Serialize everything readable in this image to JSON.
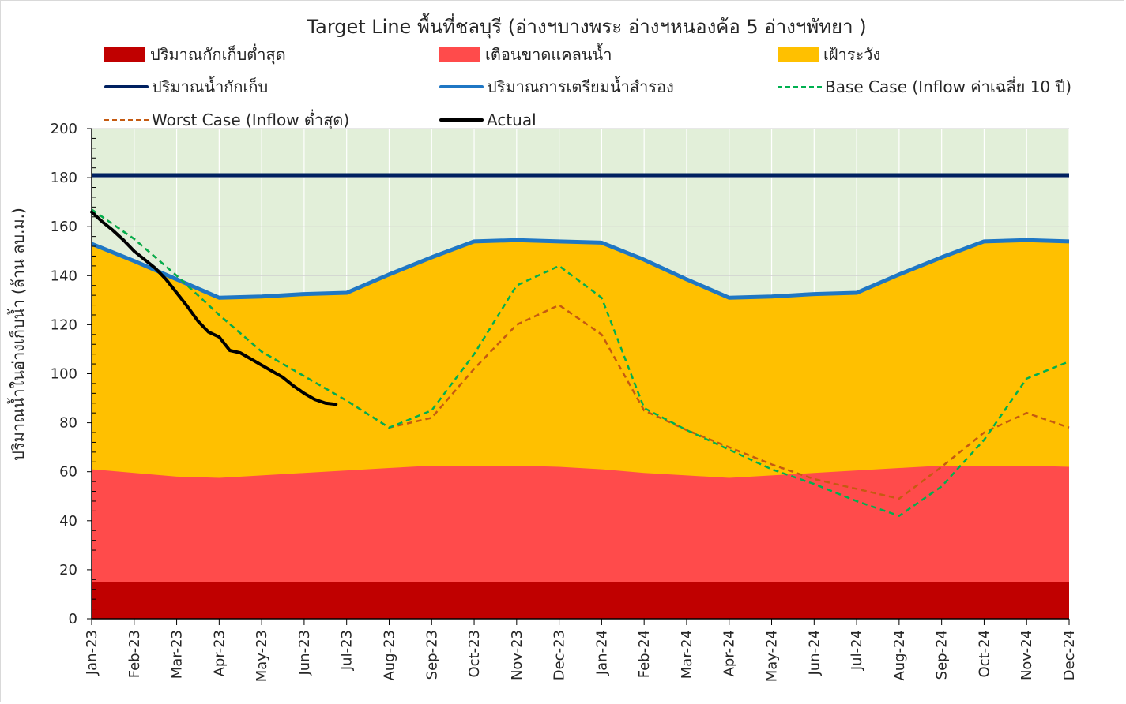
{
  "chart_data": {
    "type": "area",
    "title": "Target Line พื้นที่ชลบุรี (อ่างฯบางพระ อ่างฯหนองค้อ 5 อ่างฯพัทยา )",
    "ylabel": "ปริมาณน้ำในอ่างเก็บน้ำ (ล้าน ลบ.ม.)",
    "xlabel": "",
    "ylim": [
      0,
      200
    ],
    "yticks": [
      0,
      20,
      40,
      60,
      80,
      100,
      120,
      140,
      160,
      180,
      200
    ],
    "categories": [
      "Jan-23",
      "Feb-23",
      "Mar-23",
      "Apr-23",
      "May-23",
      "Jun-23",
      "Jul-23",
      "Aug-23",
      "Sep-23",
      "Oct-23",
      "Nov-23",
      "Dec-23",
      "Jan-24",
      "Feb-24",
      "Mar-24",
      "Apr-24",
      "May-24",
      "Jun-24",
      "Jul-24",
      "Aug-24",
      "Sep-24",
      "Oct-24",
      "Nov-24",
      "Dec-24"
    ],
    "grid": true,
    "legend_position": "top",
    "series": [
      {
        "name": "ปริมาณกักเก็บต่ำสุด",
        "kind": "area",
        "color": "#c00000",
        "values": [
          15,
          15,
          15,
          15,
          15,
          15,
          15,
          15,
          15,
          15,
          15,
          15,
          15,
          15,
          15,
          15,
          15,
          15,
          15,
          15,
          15,
          15,
          15,
          15
        ]
      },
      {
        "name": "เตือนขาดแคลนน้ำ",
        "kind": "area",
        "color": "#ff4b4b",
        "values": [
          61,
          59.5,
          58,
          57.5,
          58.5,
          59.5,
          60.5,
          61.5,
          62.5,
          62.5,
          62.5,
          62,
          61,
          59.5,
          58.5,
          57.5,
          58.5,
          59.5,
          60.5,
          61.5,
          62.5,
          62.5,
          62.5,
          62
        ]
      },
      {
        "name": "เฝ้าระวัง",
        "kind": "area",
        "color": "#ffc000",
        "values": [
          153,
          146,
          138.5,
          131,
          131.5,
          132.5,
          133,
          140.5,
          147.5,
          154,
          154.5,
          154,
          153.5,
          146.5,
          138.5,
          131,
          131.5,
          132.5,
          133,
          140.5,
          147.5,
          154,
          154.5,
          154
        ]
      },
      {
        "name": "ปริมาณน้ำกักเก็บ",
        "kind": "line",
        "color": "#002060",
        "values": [
          181,
          181,
          181,
          181,
          181,
          181,
          181,
          181,
          181,
          181,
          181,
          181,
          181,
          181,
          181,
          181,
          181,
          181,
          181,
          181,
          181,
          181,
          181,
          181
        ]
      },
      {
        "name": "ปริมาณการเตรียมน้ำสำรอง",
        "kind": "line",
        "color": "#1f77c4",
        "values": [
          153,
          146,
          138.5,
          131,
          131.5,
          132.5,
          133,
          140.5,
          147.5,
          154,
          154.5,
          154,
          153.5,
          146.5,
          138.5,
          131,
          131.5,
          132.5,
          133,
          140.5,
          147.5,
          154,
          154.5,
          154
        ]
      },
      {
        "name": "Base Case (Inflow ค่าเฉลี่ย 10 ปี)",
        "kind": "dashed",
        "color": "#00b050",
        "x": [
          "Jan-23",
          "Feb-23",
          "Mar-23",
          "Apr-23",
          "May-23",
          "Jun-23",
          "Jul-23",
          "Aug-23",
          "Sep-23",
          "Oct-23",
          "Nov-23",
          "Dec-23",
          "Jan-24",
          "Feb-24",
          "Mar-24",
          "Apr-24",
          "May-24",
          "Jun-24",
          "Jul-24",
          "Aug-24",
          "Sep-24",
          "Oct-24",
          "Nov-24",
          "Dec-24"
        ],
        "values": [
          167,
          155,
          140,
          124,
          109,
          99,
          89,
          78,
          85,
          108,
          136,
          144,
          131,
          86,
          77,
          69,
          61,
          55,
          48,
          42,
          54,
          73,
          98,
          105
        ]
      },
      {
        "name": "Worst Case (Inflow ต่ำสุด)",
        "kind": "dashed",
        "color": "#c55a11",
        "values": [
          167,
          155,
          140,
          124,
          109,
          99,
          89,
          78,
          82,
          102,
          120,
          128,
          116,
          85,
          77,
          70,
          63,
          57,
          53,
          49,
          62,
          76,
          84,
          78
        ]
      },
      {
        "name": "Actual",
        "kind": "line",
        "color": "#000000",
        "x": [
          0,
          0.25,
          0.5,
          0.75,
          1,
          1.25,
          1.5,
          1.75,
          2,
          2.25,
          2.5,
          2.75,
          3,
          3.25,
          3.5,
          3.75,
          4,
          4.25,
          4.5,
          4.75,
          5,
          5.25,
          5.5,
          5.75
        ],
        "values": [
          166,
          162,
          158.5,
          154.5,
          150,
          146.5,
          143,
          138.5,
          133,
          127.5,
          121.5,
          117,
          115,
          109.5,
          108.5,
          106,
          103.5,
          101,
          98.5,
          95,
          92,
          89.5,
          88,
          87.5
        ]
      }
    ]
  }
}
